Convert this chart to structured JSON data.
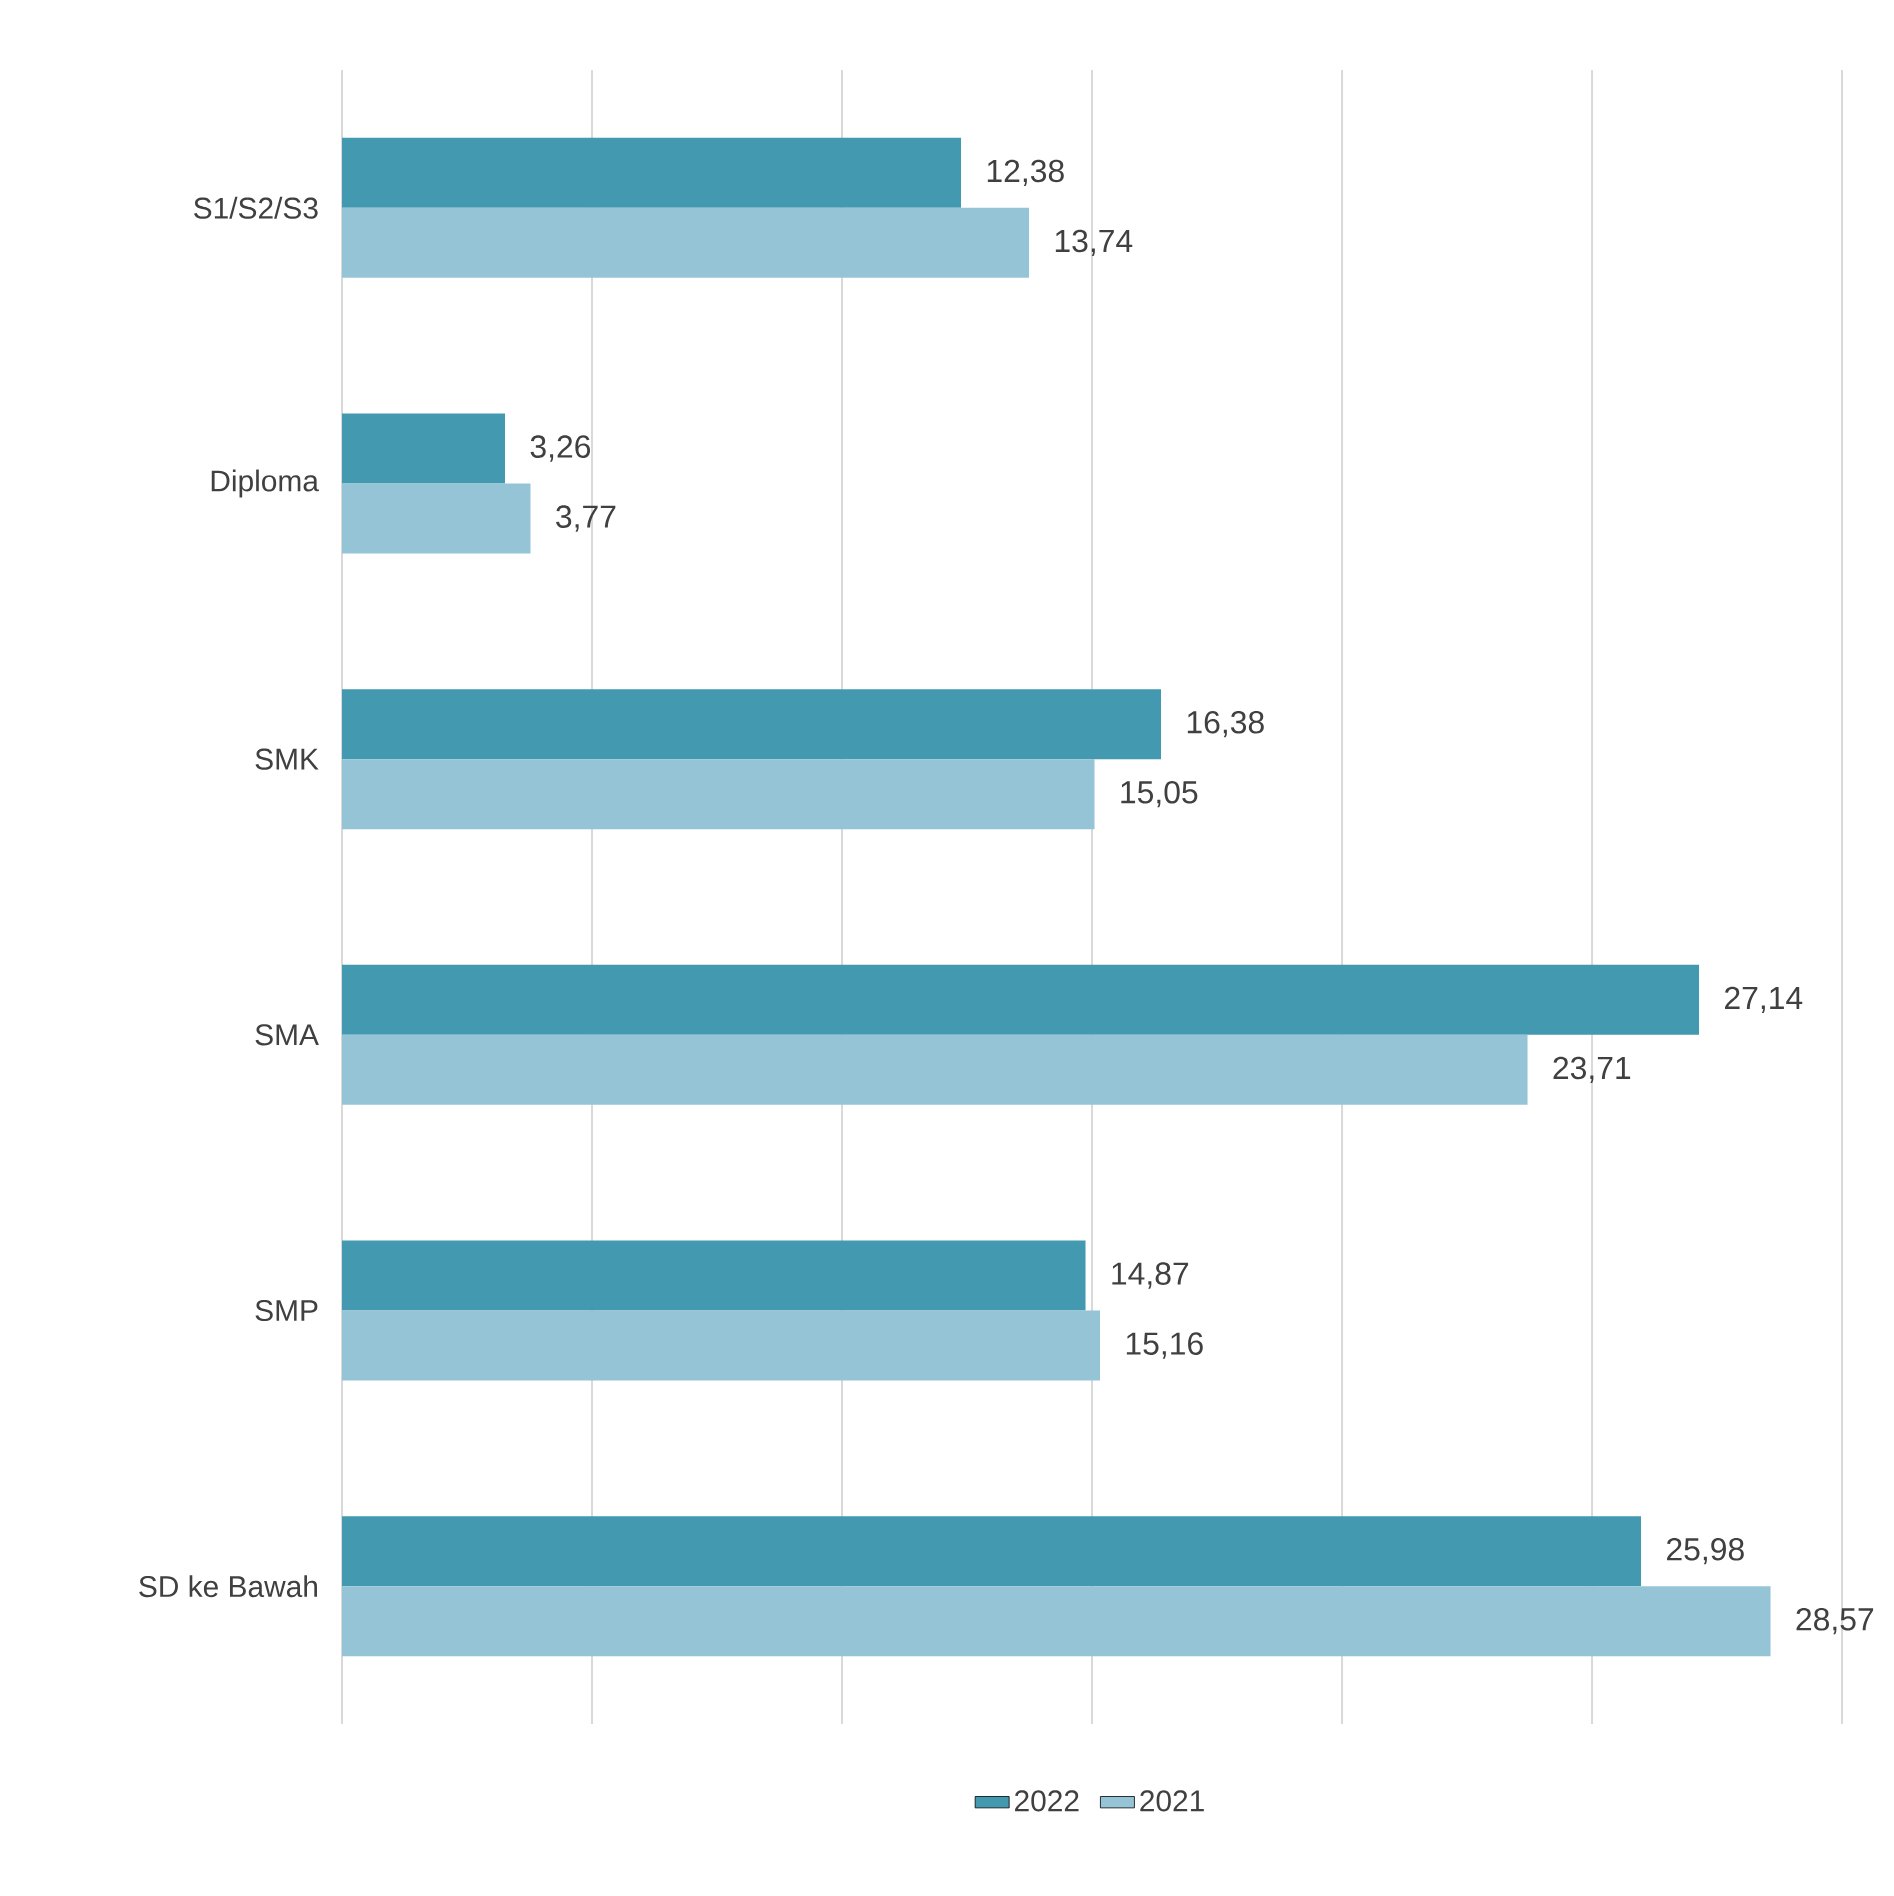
{
  "chart_data": {
    "type": "bar",
    "orientation": "horizontal",
    "categories": [
      "S1/S2/S3",
      "Diploma",
      "SMK",
      "SMA",
      "SMP",
      "SD ke Bawah"
    ],
    "series": [
      {
        "name": "2022",
        "color": "#4399b0",
        "values": [
          12.38,
          3.26,
          16.38,
          27.14,
          14.87,
          25.98
        ],
        "value_labels": [
          "12,38",
          "3,26",
          "16,38",
          "27,14",
          "14,87",
          "25,98"
        ]
      },
      {
        "name": "2021",
        "color": "#94c4d6",
        "values": [
          13.74,
          3.77,
          15.05,
          23.71,
          15.16,
          28.57
        ],
        "value_labels": [
          "13,74",
          "3,77",
          "15,05",
          "23,71",
          "15,16",
          "28,57"
        ]
      }
    ],
    "xlim": [
      0,
      30
    ],
    "xticks": [
      {
        "value": 0,
        "label": null
      },
      {
        "value": 5,
        "label": null
      },
      {
        "value": 10,
        "label": null
      },
      {
        "value": 15,
        "label": null
      },
      {
        "value": 20,
        "label": null
      },
      {
        "value": 25,
        "label": null
      },
      {
        "value": 30,
        "label": null
      }
    ],
    "grid": "x",
    "legend": "bottom",
    "tick_labels": "y"
  }
}
